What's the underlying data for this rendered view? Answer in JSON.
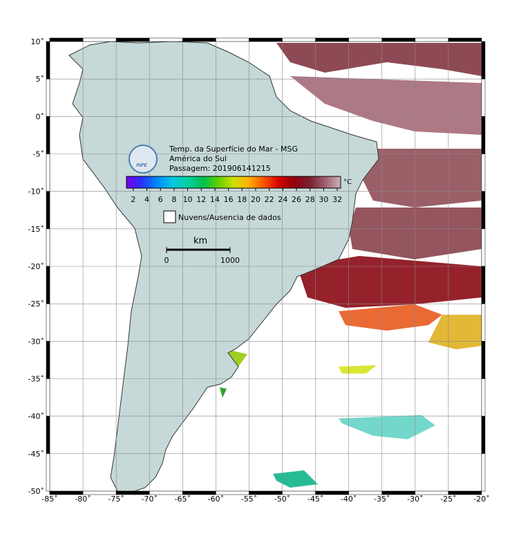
{
  "map": {
    "title_lines": [
      "Temp. da Superfície do Mar - MSG",
      "América do Sul",
      "Passagem: 201906141215"
    ],
    "logo": "INPE",
    "lon_range": [
      -85,
      -20
    ],
    "lat_range": [
      10,
      -50
    ],
    "lon_ticks": [
      {
        "value": -85,
        "label": "-85˚"
      },
      {
        "value": -80,
        "label": "-80˚"
      },
      {
        "value": -75,
        "label": "-75˚"
      },
      {
        "value": -70,
        "label": "-70˚"
      },
      {
        "value": -65,
        "label": "-65˚"
      },
      {
        "value": -60,
        "label": "-60˚"
      },
      {
        "value": -55,
        "label": "-55˚"
      },
      {
        "value": -50,
        "label": "-50˚"
      },
      {
        "value": -45,
        "label": "-45˚"
      },
      {
        "value": -40,
        "label": "-40˚"
      },
      {
        "value": -35,
        "label": "-35˚"
      },
      {
        "value": -30,
        "label": "-30˚"
      },
      {
        "value": -25,
        "label": "-25˚"
      },
      {
        "value": -20,
        "label": "-20˚"
      }
    ],
    "lat_ticks": [
      {
        "value": 10,
        "label": "10˚"
      },
      {
        "value": 5,
        "label": "5˚"
      },
      {
        "value": 0,
        "label": "0˚"
      },
      {
        "value": -5,
        "label": "-5˚"
      },
      {
        "value": -10,
        "label": "-10˚"
      },
      {
        "value": -15,
        "label": "-15˚"
      },
      {
        "value": -20,
        "label": "-20˚"
      },
      {
        "value": -25,
        "label": "-25˚"
      },
      {
        "value": -30,
        "label": "-30˚"
      },
      {
        "value": -35,
        "label": "-35˚"
      },
      {
        "value": -40,
        "label": "-40˚"
      },
      {
        "value": -45,
        "label": "-45˚"
      },
      {
        "value": -50,
        "label": "-50˚"
      }
    ],
    "colorbar": {
      "range": [
        1,
        32.5
      ],
      "ticks": [
        2,
        4,
        6,
        8,
        10,
        12,
        14,
        16,
        18,
        20,
        22,
        24,
        26,
        28,
        30,
        32
      ],
      "unit": "°C",
      "colors": [
        "#7a00e6",
        "#2a30ff",
        "#0088ff",
        "#00c8e0",
        "#00d0a0",
        "#00c050",
        "#60d000",
        "#d0e000",
        "#ffb000",
        "#ff5000",
        "#d00000",
        "#900010",
        "#7a2030",
        "#a06070",
        "#d0b0b8"
      ]
    },
    "legend": "Nuvens/Ausencia de dados",
    "scale": {
      "unit": "km",
      "ticks": [
        0,
        1000
      ]
    }
  }
}
